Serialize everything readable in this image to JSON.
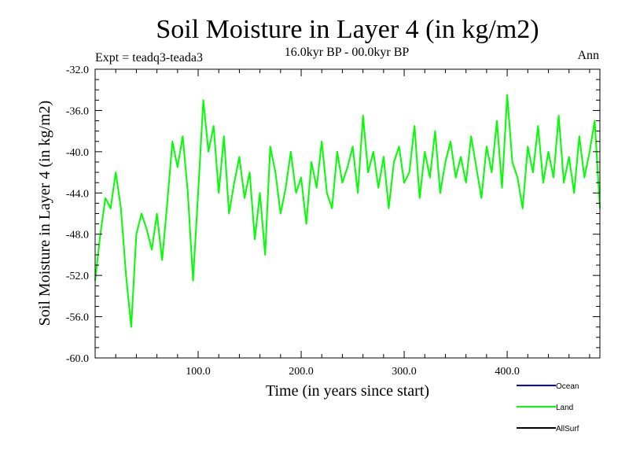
{
  "chart_data": {
    "type": "line",
    "title": "Soil Moisture in Layer 4 (in kg/m2)",
    "subtitle": "16.0kyr BP - 00.0kyr BP",
    "left_label": "Expt = teadq3-teada3",
    "right_label": "Ann",
    "xlabel": "Time (in years since start)",
    "ylabel": "Soil Moisture in Layer 4 (in kg/m2)",
    "xlim": [
      0,
      490
    ],
    "ylim": [
      -60,
      -32
    ],
    "x_ticks": [
      100,
      200,
      300,
      400
    ],
    "x_tick_labels": [
      "100.0",
      "200.0",
      "300.0",
      "400.0"
    ],
    "y_ticks": [
      -60,
      -56,
      -52,
      -48,
      -44,
      -40,
      -36,
      -32
    ],
    "y_tick_labels": [
      "-60.0",
      "-56.0",
      "-52.0",
      "-48.0",
      "-44.0",
      "-40.0",
      "-36.0",
      "-32.0"
    ],
    "series": [
      {
        "name": "Land",
        "color": "#00ff00",
        "x": [
          0,
          5,
          10,
          15,
          20,
          25,
          30,
          35,
          40,
          45,
          50,
          55,
          60,
          65,
          70,
          75,
          80,
          85,
          90,
          95,
          100,
          105,
          110,
          115,
          120,
          125,
          130,
          135,
          140,
          145,
          150,
          155,
          160,
          165,
          170,
          175,
          180,
          185,
          190,
          195,
          200,
          205,
          210,
          215,
          220,
          225,
          230,
          235,
          240,
          245,
          250,
          255,
          260,
          265,
          270,
          275,
          280,
          285,
          290,
          295,
          300,
          305,
          310,
          315,
          320,
          325,
          330,
          335,
          340,
          345,
          350,
          355,
          360,
          365,
          370,
          375,
          380,
          385,
          390,
          395,
          400,
          405,
          410,
          415,
          420,
          425,
          430,
          435,
          440,
          445,
          450,
          455,
          460,
          465,
          470,
          475,
          480,
          485,
          490
        ],
        "values": [
          -52.5,
          -48.0,
          -44.5,
          -45.5,
          -42.0,
          -45.5,
          -52.0,
          -57.0,
          -48.0,
          -46.0,
          -47.5,
          -49.5,
          -46.0,
          -50.5,
          -45.0,
          -39.0,
          -41.5,
          -38.5,
          -44.0,
          -52.5,
          -44.0,
          -35.0,
          -40.0,
          -37.5,
          -44.0,
          -38.5,
          -46.0,
          -43.0,
          -40.5,
          -44.5,
          -42.0,
          -48.5,
          -44.0,
          -50.0,
          -39.5,
          -42.0,
          -46.0,
          -43.5,
          -40.0,
          -44.0,
          -42.5,
          -47.0,
          -41.0,
          -43.5,
          -39.0,
          -44.0,
          -45.5,
          -40.0,
          -43.0,
          -41.5,
          -39.5,
          -44.0,
          -36.5,
          -42.0,
          -40.0,
          -43.5,
          -40.5,
          -45.5,
          -41.0,
          -39.5,
          -43.0,
          -42.0,
          -37.5,
          -44.5,
          -40.0,
          -42.5,
          -38.0,
          -44.0,
          -41.0,
          -39.0,
          -42.5,
          -40.5,
          -43.0,
          -38.5,
          -41.5,
          -44.5,
          -39.5,
          -42.0,
          -37.0,
          -43.5,
          -34.5,
          -41.0,
          -42.5,
          -45.5,
          -39.5,
          -42.0,
          -37.5,
          -43.0,
          -40.0,
          -42.5,
          -36.5,
          -43.0,
          -40.5,
          -44.0,
          -38.5,
          -42.5,
          -40.0,
          -37.0,
          -45.5
        ]
      },
      {
        "name": "Ocean",
        "color": "#0000ff",
        "x": [],
        "values": []
      },
      {
        "name": "AllSurf",
        "color": "#000000",
        "x": [],
        "values": []
      }
    ],
    "legend": [
      {
        "label": "Ocean",
        "color": "#0000ff"
      },
      {
        "label": "Land",
        "color": "#00ff00"
      },
      {
        "label": "AllSurf",
        "color": "#000000"
      }
    ],
    "legend_position": "bottom-right",
    "grid": false
  }
}
